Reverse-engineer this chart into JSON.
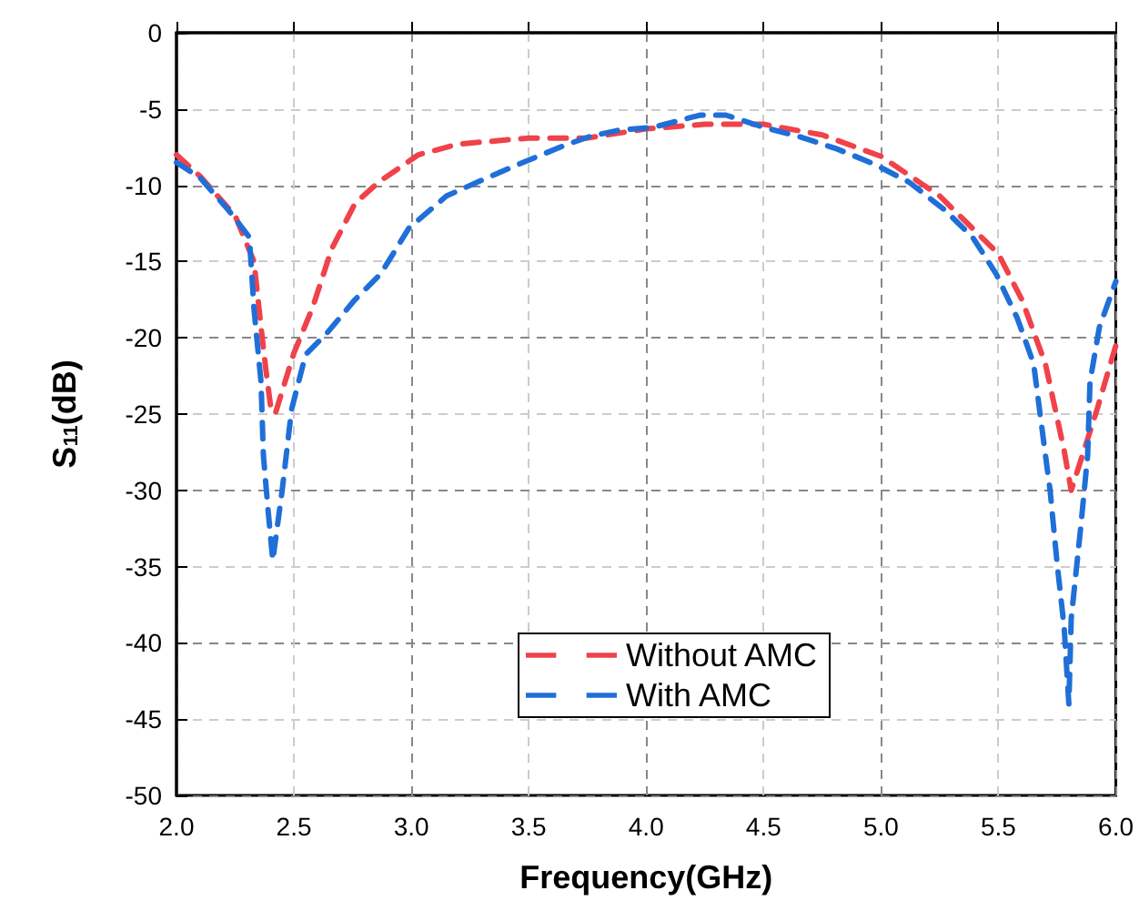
{
  "chart_data": {
    "type": "line",
    "xlabel": "Frequency(GHz)",
    "ylabel": "S$_{11}$(dB)",
    "xlim": [
      2.0,
      6.0
    ],
    "xticks": [
      {
        "value": 2,
        "label": "2.0"
      },
      {
        "value": 2.5,
        "label": "2.5"
      },
      {
        "value": 3,
        "label": "3.0"
      },
      {
        "value": 3.5,
        "label": "3.5"
      },
      {
        "value": 4,
        "label": "4.0"
      },
      {
        "value": 4.5,
        "label": "4.5"
      },
      {
        "value": 5,
        "label": "5.0"
      },
      {
        "value": 5.5,
        "label": "5.5"
      },
      {
        "value": 6,
        "label": "6.0"
      }
    ],
    "ylim": [
      -50,
      0
    ],
    "yticks": [
      -50,
      -45,
      -40,
      -35,
      -30,
      -25,
      -20,
      -15,
      -10,
      -5,
      0
    ],
    "grid": true,
    "legend": "bottom",
    "line_style": "dashed",
    "marker": "none",
    "series": [
      {
        "name": "Without AMC",
        "color": "#f0424a",
        "x": [
          2.0,
          2.1,
          2.25,
          2.33,
          2.36,
          2.38,
          2.4,
          2.42,
          2.5,
          2.58,
          2.66,
          2.76,
          2.86,
          3.03,
          3.2,
          3.5,
          3.75,
          4.0,
          4.25,
          4.5,
          4.75,
          5.0,
          5.25,
          5.5,
          5.6,
          5.7,
          5.78,
          5.81,
          5.92,
          6.0
        ],
        "values": [
          -8.0,
          -9.4,
          -12.0,
          -15,
          -19.3,
          -22,
          -24.4,
          -25,
          -21,
          -18,
          -14.2,
          -11.2,
          -9.8,
          -8.0,
          -7.3,
          -6.9,
          -6.9,
          -6.3,
          -6.0,
          -6.0,
          -6.7,
          -8.1,
          -10.7,
          -14.5,
          -17.5,
          -21.7,
          -27.4,
          -30,
          -24.7,
          -20.5
        ]
      },
      {
        "name": "With AMC",
        "color": "#1f6fd8",
        "x": [
          2.0,
          2.1,
          2.22,
          2.31,
          2.32,
          2.33,
          2.36,
          2.37,
          2.39,
          2.41,
          2.45,
          2.49,
          2.55,
          2.64,
          2.76,
          2.87,
          2.99,
          3.15,
          3.28,
          3.46,
          3.65,
          3.76,
          3.88,
          4.03,
          4.23,
          4.34,
          4.5,
          4.65,
          4.81,
          4.97,
          5.12,
          5.27,
          5.39,
          5.49,
          5.58,
          5.65,
          5.68,
          5.72,
          5.75,
          5.78,
          5.8,
          5.81,
          5.85,
          5.88,
          5.89,
          5.93,
          6.0
        ],
        "values": [
          -8.5,
          -9.5,
          -11.6,
          -13.4,
          -15.7,
          -18.1,
          -22.9,
          -27.7,
          -31.3,
          -34.6,
          -30,
          -24.7,
          -21.1,
          -19.7,
          -17.5,
          -15.8,
          -12.8,
          -10.7,
          -9.8,
          -8.6,
          -7.4,
          -6.8,
          -6.4,
          -6.2,
          -5.4,
          -5.4,
          -6.2,
          -6.8,
          -7.6,
          -8.6,
          -9.8,
          -11.6,
          -13.4,
          -15.8,
          -18.7,
          -21.7,
          -25.3,
          -30,
          -34.8,
          -39,
          -44,
          -38.4,
          -32.5,
          -27.7,
          -22.9,
          -19.3,
          -16.3
        ]
      }
    ]
  }
}
